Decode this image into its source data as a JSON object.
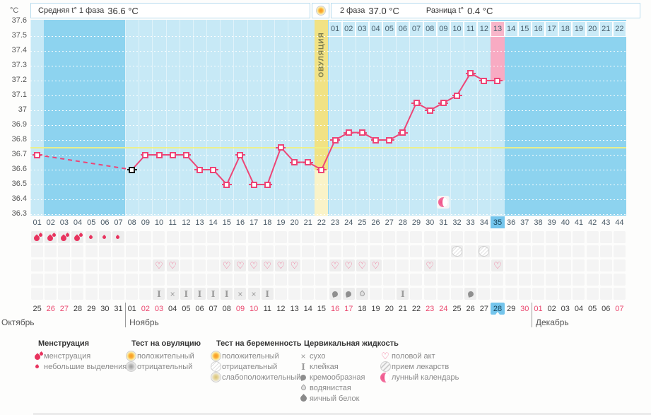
{
  "header": {
    "phase1_label": "Средняя t° 1 фаза",
    "phase1_value": "36.6 °C",
    "phase2_label": "2 фаза",
    "phase2_value": "37.0 °C",
    "diff_label": "Разница t°",
    "diff_value": "0.4 °C",
    "ovulation_label": "ОВУЛЯЦИЯ"
  },
  "y_axis": {
    "unit": "°C",
    "ticks": [
      "37.6",
      "37.5",
      "37.4",
      "37.3",
      "37.2",
      "37.1",
      "37",
      "36.9",
      "36.8",
      "36.7",
      "36.6",
      "36.5",
      "36.4",
      "36.3"
    ]
  },
  "chart_data": {
    "type": "line",
    "ylabel": "°C",
    "ylim": [
      36.3,
      37.6
    ],
    "ytick_step": 0.1,
    "x_range": [
      1,
      44
    ],
    "coverline": 36.75,
    "ovulation_day": 22,
    "today_day": 35,
    "dashed_segment_days": [
      1,
      8
    ],
    "series": [
      {
        "name": "basal-temperature",
        "points": [
          {
            "day": 1,
            "temp": 36.7
          },
          {
            "day": 8,
            "temp": 36.6,
            "marker": "black"
          },
          {
            "day": 9,
            "temp": 36.7
          },
          {
            "day": 10,
            "temp": 36.7
          },
          {
            "day": 11,
            "temp": 36.7
          },
          {
            "day": 12,
            "temp": 36.7
          },
          {
            "day": 13,
            "temp": 36.6
          },
          {
            "day": 14,
            "temp": 36.6
          },
          {
            "day": 15,
            "temp": 36.5
          },
          {
            "day": 16,
            "temp": 36.7
          },
          {
            "day": 17,
            "temp": 36.5
          },
          {
            "day": 18,
            "temp": 36.5
          },
          {
            "day": 19,
            "temp": 36.75
          },
          {
            "day": 20,
            "temp": 36.65
          },
          {
            "day": 21,
            "temp": 36.65
          },
          {
            "day": 22,
            "temp": 36.6
          },
          {
            "day": 23,
            "temp": 36.8
          },
          {
            "day": 24,
            "temp": 36.85
          },
          {
            "day": 25,
            "temp": 36.85
          },
          {
            "day": 26,
            "temp": 36.8
          },
          {
            "day": 27,
            "temp": 36.8
          },
          {
            "day": 28,
            "temp": 36.85
          },
          {
            "day": 29,
            "temp": 37.05
          },
          {
            "day": 30,
            "temp": 37.0
          },
          {
            "day": 31,
            "temp": 37.05
          },
          {
            "day": 32,
            "temp": 37.1
          },
          {
            "day": 33,
            "temp": 37.25
          },
          {
            "day": 34,
            "temp": 37.2
          },
          {
            "day": 35,
            "temp": 37.2
          }
        ]
      }
    ],
    "dpo": {
      "labels": [
        "01",
        "02",
        "03",
        "04",
        "05",
        "06",
        "07",
        "08",
        "09",
        "10",
        "11",
        "12",
        "13",
        "14",
        "15",
        "16",
        "17",
        "18",
        "19",
        "20",
        "21",
        "22"
      ],
      "highlight": "13"
    },
    "lunar_marker_day": 31
  },
  "day_labels": [
    "01",
    "02",
    "03",
    "04",
    "05",
    "06",
    "07",
    "08",
    "09",
    "10",
    "11",
    "12",
    "13",
    "14",
    "15",
    "16",
    "17",
    "18",
    "19",
    "20",
    "21",
    "22",
    "23",
    "24",
    "25",
    "26",
    "27",
    "28",
    "29",
    "30",
    "31",
    "32",
    "33",
    "34",
    "35",
    "36",
    "37",
    "38",
    "39",
    "40",
    "41",
    "42",
    "43",
    "44"
  ],
  "symbols": {
    "menstruation_heavy_days": [
      1,
      2,
      3,
      4
    ],
    "menstruation_light_days": [
      5,
      6,
      7
    ],
    "pregnancy_test_negative_days": [
      32,
      34
    ],
    "intercourse_days": [
      10,
      11,
      15,
      16,
      17,
      18,
      19,
      20,
      23,
      24,
      25,
      26,
      30,
      35
    ],
    "medication_days": [],
    "cervical_fluid": {
      "10": "sticky",
      "11": "dry",
      "12": "sticky",
      "13": "sticky",
      "14": "sticky",
      "15": "sticky",
      "16": "dry",
      "17": "dry",
      "18": "sticky",
      "23": "creamy",
      "24": "creamy",
      "25": "watery",
      "28": "sticky",
      "33": "creamy"
    }
  },
  "calendar": {
    "cells": [
      {
        "label": "25"
      },
      {
        "label": "26",
        "red": true
      },
      {
        "label": "27",
        "red": true
      },
      {
        "label": "28"
      },
      {
        "label": "29"
      },
      {
        "label": "30"
      },
      {
        "label": "31"
      },
      {
        "label": "01"
      },
      {
        "label": "02",
        "red": true
      },
      {
        "label": "03",
        "red": true
      },
      {
        "label": "04"
      },
      {
        "label": "05"
      },
      {
        "label": "06"
      },
      {
        "label": "07"
      },
      {
        "label": "08"
      },
      {
        "label": "09",
        "red": true
      },
      {
        "label": "10",
        "red": true
      },
      {
        "label": "11"
      },
      {
        "label": "12"
      },
      {
        "label": "13"
      },
      {
        "label": "14"
      },
      {
        "label": "15"
      },
      {
        "label": "16",
        "red": true
      },
      {
        "label": "17",
        "red": true
      },
      {
        "label": "18"
      },
      {
        "label": "19"
      },
      {
        "label": "20"
      },
      {
        "label": "21"
      },
      {
        "label": "22"
      },
      {
        "label": "23",
        "red": true
      },
      {
        "label": "24",
        "red": true
      },
      {
        "label": "25"
      },
      {
        "label": "26"
      },
      {
        "label": "27"
      },
      {
        "label": "28",
        "today": true
      },
      {
        "label": "29"
      },
      {
        "label": "30",
        "red": true
      },
      {
        "label": "01",
        "red": true
      },
      {
        "label": "02"
      },
      {
        "label": "03"
      },
      {
        "label": "04"
      },
      {
        "label": "05"
      },
      {
        "label": "06"
      },
      {
        "label": "07",
        "red": true
      }
    ],
    "months": [
      {
        "name": "Октябрь",
        "start_index": 0
      },
      {
        "name": "Ноябрь",
        "start_index": 7
      },
      {
        "name": "Декабрь",
        "start_index": 37
      }
    ]
  },
  "legend": {
    "columns": [
      {
        "title": "Менструация",
        "items": [
          {
            "icon": "menses-heavy-icon",
            "label": "менструация"
          },
          {
            "icon": "menses-light-icon",
            "label": "небольшие выделения"
          }
        ]
      },
      {
        "title": "Тест на овуляцию",
        "items": [
          {
            "icon": "ovulation-test-positive-icon",
            "label": "положительный"
          },
          {
            "icon": "ovulation-test-negative-icon",
            "label": "отрицательный"
          }
        ]
      },
      {
        "title": "Тест на беременность",
        "items": [
          {
            "icon": "pregnancy-test-positive-icon",
            "label": "положительный"
          },
          {
            "icon": "pregnancy-test-negative-icon",
            "label": "отрицательный"
          },
          {
            "icon": "pregnancy-test-weak-positive-icon",
            "label": "слабоположительный"
          }
        ]
      },
      {
        "title": "Цервикальная жидкость",
        "items": [
          {
            "icon": "cervical-dry-icon",
            "label": "сухо"
          },
          {
            "icon": "cervical-sticky-icon",
            "label": "клейкая"
          },
          {
            "icon": "cervical-creamy-icon",
            "label": "кремообразная"
          },
          {
            "icon": "cervical-watery-icon",
            "label": "водянистая"
          },
          {
            "icon": "cervical-eggwhite-icon",
            "label": "яичный белок"
          }
        ]
      },
      {
        "title": "",
        "items": [
          {
            "icon": "intercourse-heart-icon",
            "label": "половой акт"
          },
          {
            "icon": "medication-icon",
            "label": "прием лекарств"
          },
          {
            "icon": "lunar-calendar-icon",
            "label": "лунный календарь"
          }
        ]
      }
    ]
  },
  "colors": {
    "plot_bg": "#8dd3ef",
    "measured_column": "#c7e9f6",
    "ovulation_column": "#f1e284",
    "ovulation_column_pale": "#faf3c8",
    "today_column_pink": "#f8abc3",
    "dpo_highlight_pink": "#f8b6ca",
    "line_pink": "#ed4576",
    "coverline_yellow": "#eef086",
    "today_blue": "#74c5ec",
    "weekend_red": "#ea476e",
    "menses_red": "#e8335e"
  }
}
